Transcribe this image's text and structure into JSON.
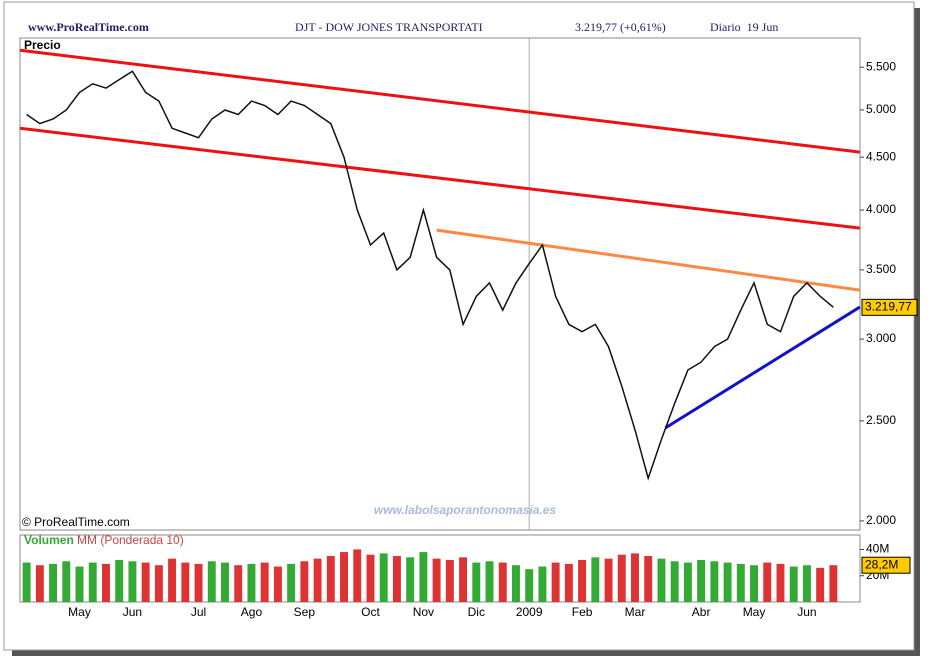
{
  "header": {
    "site": "www.ProRealTime.com",
    "title": "DJT - DOW JONES TRANSPORTATI",
    "quote": "3.219,77 (+0,61%)",
    "period": "Diario  19 Jun"
  },
  "chart_data": [
    {
      "type": "line",
      "label": "Precio",
      "log_scale": true,
      "color": "#111111",
      "categories": [
        null,
        null,
        null,
        null,
        "May",
        null,
        null,
        null,
        "Jun",
        null,
        null,
        null,
        null,
        "Jul",
        null,
        null,
        null,
        "Ago",
        null,
        null,
        null,
        "Sep",
        null,
        null,
        null,
        null,
        "Oct",
        null,
        null,
        null,
        "Nov",
        null,
        null,
        null,
        "Dic",
        null,
        null,
        null,
        "2009",
        null,
        null,
        null,
        "Feb",
        null,
        null,
        null,
        "Mar",
        null,
        null,
        null,
        null,
        "Abr",
        null,
        null,
        null,
        "May",
        null,
        null,
        null,
        "Jun",
        null,
        null
      ],
      "values": [
        4950,
        4850,
        4900,
        5000,
        5200,
        5300,
        5250,
        5350,
        5450,
        5200,
        5100,
        4800,
        4750,
        4700,
        4900,
        5000,
        4950,
        5100,
        5050,
        4950,
        5100,
        5050,
        4950,
        4850,
        4500,
        4000,
        3700,
        3800,
        3500,
        3600,
        4000,
        3600,
        3500,
        3100,
        3300,
        3400,
        3200,
        3400,
        3550,
        3700,
        3300,
        3100,
        3050,
        3100,
        2950,
        2700,
        2450,
        2200,
        2400,
        2600,
        2800,
        2850,
        2950,
        3000,
        3200,
        3400,
        3100,
        3050,
        3300,
        3400,
        3300,
        3220
      ],
      "ylim": [
        1960,
        5870
      ],
      "yticks": [
        {
          "value": 2000,
          "label": "2.000"
        },
        {
          "value": 2500,
          "label": "2.500"
        },
        {
          "value": 3000,
          "label": "3.000"
        },
        {
          "value": 3500,
          "label": "3.500"
        },
        {
          "value": 4000,
          "label": "4.000"
        },
        {
          "value": 4500,
          "label": "4.500"
        },
        {
          "value": 5000,
          "label": "5.000"
        },
        {
          "value": 5500,
          "label": "5.500"
        }
      ],
      "last_label": "3.219,77",
      "trendlines": [
        {
          "color": "#ee1111",
          "x": [
            -0.5,
            63.0
          ],
          "y": [
            5712,
            4551
          ]
        },
        {
          "color": "#ee1111",
          "x": [
            -0.5,
            63.0
          ],
          "y": [
            4800,
            3842
          ]
        },
        {
          "color": "#ff8844",
          "x": [
            31.0,
            63.0
          ],
          "y": [
            3825,
            3346
          ]
        },
        {
          "color": "#1111cc",
          "x": [
            48.3,
            63.0
          ],
          "y": [
            2461,
            3222
          ]
        }
      ],
      "copyright": "© ProRealTime.com",
      "watermark": "www.labolsaporantonomasia.es"
    },
    {
      "type": "bar",
      "label": "Volumen",
      "ma_label": "MM (Ponderada 10)",
      "values": [
        30,
        28,
        29,
        31,
        27,
        30,
        29,
        32,
        31,
        30,
        28,
        33,
        30,
        29,
        31,
        30,
        28,
        29,
        30,
        27,
        29,
        31,
        33,
        35,
        38,
        40,
        36,
        37,
        35,
        34,
        38,
        33,
        32,
        34,
        30,
        31,
        30,
        28,
        25,
        27,
        30,
        29,
        32,
        34,
        33,
        36,
        37,
        35,
        33,
        31,
        30,
        32,
        31,
        30,
        29,
        28,
        30,
        29,
        27,
        28,
        26,
        28
      ],
      "colors": [
        "#33aa33",
        "#dd3333"
      ],
      "ylim": [
        0,
        51
      ],
      "yticks": [
        {
          "value": 20,
          "label": "20M"
        },
        {
          "value": 40,
          "label": "40M"
        }
      ],
      "last_label": "28,2M"
    }
  ]
}
